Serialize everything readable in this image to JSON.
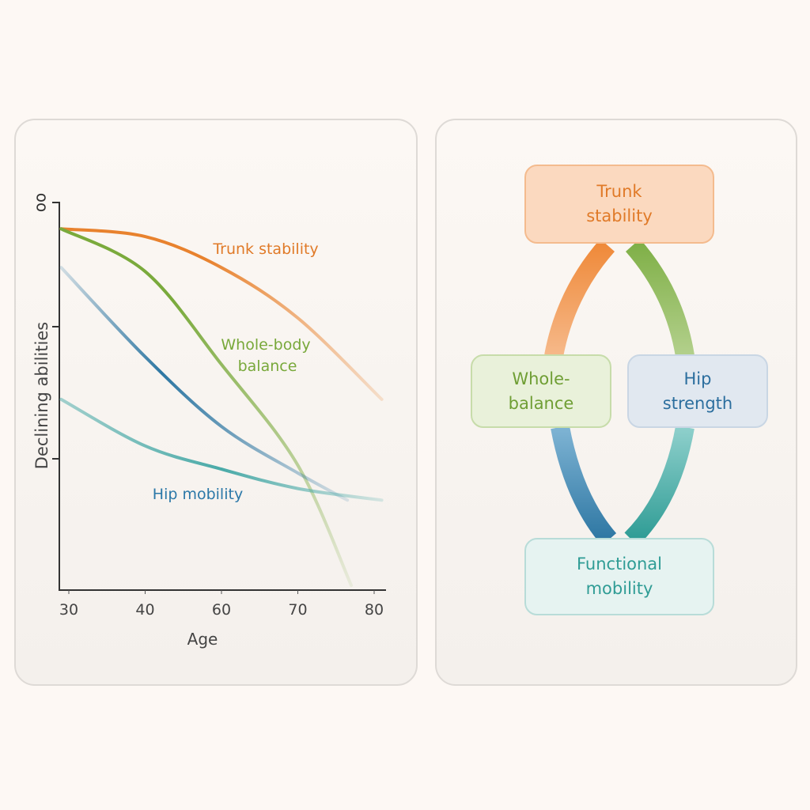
{
  "chart_data": {
    "type": "line",
    "xlabel": "Age",
    "ylabel": "Declining abilities",
    "x_ticks": [
      30,
      40,
      60,
      70,
      80
    ],
    "y_top_tick_label": "oo",
    "ylim": [
      0,
      100
    ],
    "grid": false,
    "series": [
      {
        "name": "Trunk stability",
        "color": "#e8822e",
        "x": [
          29,
          40,
          60,
          70,
          81
        ],
        "y": [
          93,
          91,
          83,
          70,
          49
        ]
      },
      {
        "name": "Whole-body balance",
        "color": "#7aaa3c",
        "x": [
          29,
          40,
          60,
          70,
          77
        ],
        "y": [
          93,
          82,
          58,
          32,
          1
        ]
      },
      {
        "name": "",
        "color": "#2e77a3",
        "x": [
          29,
          40,
          60,
          70,
          76.5
        ],
        "y": [
          83,
          60,
          42,
          30,
          23
        ]
      },
      {
        "name": "Hip mobility",
        "color": "#4aaaa8",
        "x": [
          29,
          40,
          60,
          70,
          81
        ],
        "y": [
          49,
          37,
          31,
          26,
          23
        ]
      }
    ],
    "labels": {
      "trunk": "Trunk stability",
      "balance_1": "Whole-body",
      "balance_2": "balance",
      "hip": "Hip mobility"
    }
  },
  "diagram": {
    "nodes": {
      "trunk": {
        "line1": "Trunk",
        "line2": "stability",
        "color": "#e8822e"
      },
      "balance": {
        "line1": "Whole-",
        "line2": "balance",
        "color": "#7aaa3c"
      },
      "hip": {
        "line1": "Hip",
        "line2": "strength",
        "color": "#2e77a3"
      },
      "functional": {
        "line1": "Functional",
        "line2": "mobility",
        "color": "#35a39c"
      }
    }
  }
}
